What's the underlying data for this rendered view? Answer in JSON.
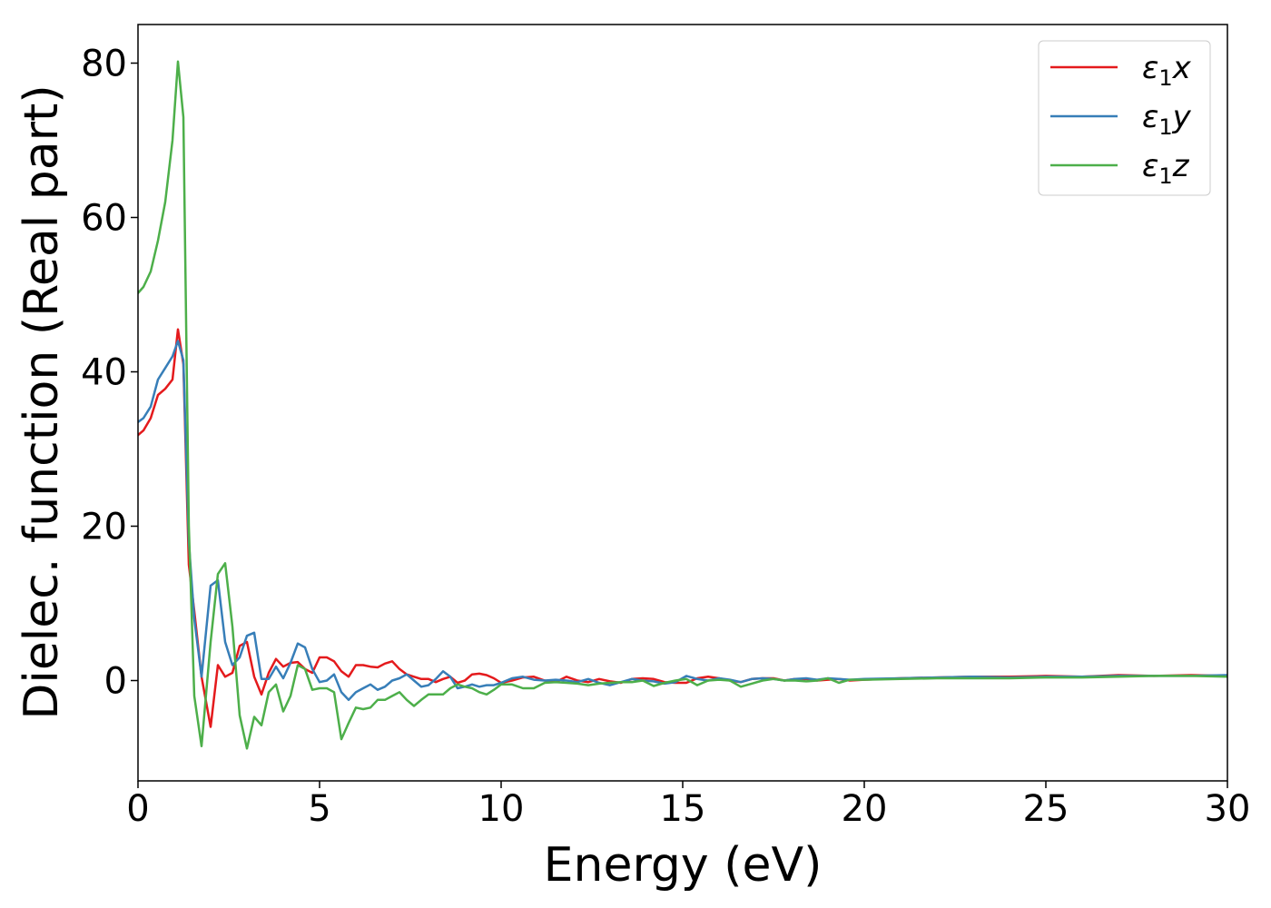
{
  "chart_data": {
    "type": "line",
    "title": "",
    "xlabel": "Energy (eV)",
    "ylabel": "Dielec. function (Real part)",
    "xlim": [
      0,
      30
    ],
    "ylim": [
      -13,
      85
    ],
    "xticks": [
      0,
      5,
      10,
      15,
      20,
      25,
      30
    ],
    "yticks": [
      0,
      20,
      40,
      60,
      80
    ],
    "grid": false,
    "legend_position": "top-right",
    "series": [
      {
        "name": "ε₁x",
        "legend_main": "ε",
        "legend_sub": "1",
        "legend_var": "x",
        "color": "#e41a1c",
        "x": [
          0,
          0.15,
          0.35,
          0.55,
          0.75,
          0.95,
          1.1,
          1.25,
          1.4,
          1.55,
          1.75,
          2.0,
          2.2,
          2.4,
          2.6,
          2.8,
          3.0,
          3.2,
          3.4,
          3.6,
          3.8,
          4.0,
          4.2,
          4.4,
          4.6,
          4.8,
          5.0,
          5.2,
          5.4,
          5.6,
          5.8,
          6.0,
          6.2,
          6.4,
          6.6,
          6.8,
          7.0,
          7.2,
          7.4,
          7.6,
          7.8,
          8.0,
          8.2,
          8.4,
          8.6,
          8.8,
          9.0,
          9.2,
          9.4,
          9.6,
          9.8,
          10.0,
          10.3,
          10.6,
          10.9,
          11.2,
          11.5,
          11.8,
          12.1,
          12.4,
          12.7,
          13.0,
          13.3,
          13.6,
          13.9,
          14.2,
          14.5,
          14.8,
          15.1,
          15.4,
          15.7,
          16.0,
          16.3,
          16.6,
          16.9,
          17.2,
          17.5,
          17.8,
          18.1,
          18.4,
          18.7,
          19.0,
          19.3,
          19.6,
          20.0,
          21.0,
          22.0,
          23.0,
          24.0,
          25.0,
          26.0,
          27.0,
          28.0,
          29.0,
          30.0
        ],
        "values": [
          31.8,
          32.4,
          34.0,
          37.0,
          37.8,
          39.0,
          45.5,
          41.0,
          15.0,
          9.0,
          0.5,
          -6.0,
          2.0,
          0.5,
          1.0,
          4.5,
          5.0,
          0.5,
          -1.8,
          1.0,
          2.8,
          1.8,
          2.3,
          2.4,
          1.5,
          1.0,
          3.0,
          3.0,
          2.5,
          1.2,
          0.5,
          2.0,
          2.0,
          1.8,
          1.7,
          2.2,
          2.5,
          1.5,
          0.8,
          0.5,
          0.2,
          0.2,
          -0.2,
          0.2,
          0.5,
          -0.3,
          0.0,
          0.8,
          0.9,
          0.7,
          0.3,
          -0.3,
          0.0,
          0.4,
          0.5,
          0.0,
          -0.2,
          0.5,
          0.0,
          -0.2,
          0.2,
          -0.1,
          -0.3,
          0.2,
          0.3,
          0.2,
          -0.2,
          -0.3,
          -0.3,
          0.3,
          0.5,
          0.3,
          0.0,
          -0.2,
          0.2,
          0.3,
          0.3,
          0.0,
          0.2,
          0.2,
          0.0,
          0.1,
          0.2,
          0.0,
          0.1,
          0.3,
          0.4,
          0.5,
          0.5,
          0.6,
          0.5,
          0.7,
          0.6,
          0.7,
          0.6
        ]
      },
      {
        "name": "ε₁y",
        "legend_main": "ε",
        "legend_sub": "1",
        "legend_var": "y",
        "color": "#377eb8",
        "x": [
          0,
          0.15,
          0.35,
          0.55,
          0.75,
          0.95,
          1.1,
          1.25,
          1.4,
          1.55,
          1.75,
          2.0,
          2.2,
          2.4,
          2.6,
          2.8,
          3.0,
          3.2,
          3.4,
          3.6,
          3.8,
          4.0,
          4.2,
          4.4,
          4.6,
          4.8,
          5.0,
          5.2,
          5.4,
          5.6,
          5.8,
          6.0,
          6.2,
          6.4,
          6.6,
          6.8,
          7.0,
          7.2,
          7.4,
          7.6,
          7.8,
          8.0,
          8.2,
          8.4,
          8.6,
          8.8,
          9.0,
          9.2,
          9.4,
          9.6,
          9.8,
          10.0,
          10.3,
          10.6,
          10.9,
          11.2,
          11.5,
          11.8,
          12.1,
          12.4,
          12.7,
          13.0,
          13.3,
          13.6,
          13.9,
          14.2,
          14.5,
          14.8,
          15.1,
          15.4,
          15.7,
          16.0,
          16.3,
          16.6,
          16.9,
          17.2,
          17.5,
          17.8,
          18.1,
          18.4,
          18.7,
          19.0,
          19.3,
          19.6,
          20.0,
          21.0,
          22.0,
          23.0,
          24.0,
          25.0,
          26.0,
          27.0,
          28.0,
          29.0,
          30.0
        ],
        "values": [
          33.5,
          34.0,
          35.5,
          39.0,
          40.5,
          42.0,
          44.0,
          41.5,
          18.0,
          8.0,
          0.5,
          12.3,
          13.0,
          5.0,
          2.0,
          3.0,
          5.8,
          6.2,
          0.2,
          0.2,
          1.8,
          0.3,
          2.3,
          4.8,
          4.3,
          1.5,
          -0.2,
          0.0,
          0.8,
          -1.5,
          -2.5,
          -1.5,
          -1.0,
          -0.5,
          -1.2,
          -0.8,
          0.0,
          0.3,
          0.8,
          0.0,
          -0.8,
          -0.6,
          0.2,
          1.2,
          0.5,
          -1.0,
          -0.8,
          -0.5,
          -0.8,
          -0.6,
          -0.6,
          -0.3,
          0.3,
          0.5,
          0.1,
          0.0,
          0.1,
          0.0,
          -0.2,
          0.2,
          -0.3,
          -0.6,
          -0.2,
          0.2,
          0.0,
          -0.1,
          -0.4,
          -0.2,
          0.6,
          0.2,
          0.0,
          0.3,
          0.1,
          -0.2,
          0.2,
          0.3,
          0.2,
          0.0,
          0.2,
          0.3,
          0.1,
          0.3,
          0.2,
          0.1,
          0.2,
          0.3,
          0.4,
          0.5,
          0.4,
          0.5,
          0.5,
          0.6,
          0.6,
          0.6,
          0.7
        ]
      },
      {
        "name": "ε₁z",
        "legend_main": "ε",
        "legend_sub": "1",
        "legend_var": "z",
        "color": "#4daf4a",
        "x": [
          0,
          0.15,
          0.35,
          0.55,
          0.75,
          0.95,
          1.1,
          1.25,
          1.4,
          1.55,
          1.75,
          2.0,
          2.2,
          2.4,
          2.6,
          2.8,
          3.0,
          3.2,
          3.4,
          3.6,
          3.8,
          4.0,
          4.2,
          4.4,
          4.6,
          4.8,
          5.0,
          5.2,
          5.4,
          5.6,
          5.8,
          6.0,
          6.2,
          6.4,
          6.6,
          6.8,
          7.0,
          7.2,
          7.4,
          7.6,
          7.8,
          8.0,
          8.2,
          8.4,
          8.6,
          8.8,
          9.0,
          9.2,
          9.4,
          9.6,
          9.8,
          10.0,
          10.3,
          10.6,
          10.9,
          11.2,
          11.5,
          11.8,
          12.1,
          12.4,
          12.7,
          13.0,
          13.3,
          13.6,
          13.9,
          14.2,
          14.5,
          14.8,
          15.1,
          15.4,
          15.7,
          16.0,
          16.3,
          16.6,
          16.9,
          17.2,
          17.5,
          17.8,
          18.1,
          18.4,
          18.7,
          19.0,
          19.3,
          19.6,
          20.0,
          21.0,
          22.0,
          23.0,
          24.0,
          25.0,
          26.0,
          27.0,
          28.0,
          29.0,
          30.0
        ],
        "values": [
          50.2,
          51.0,
          53.0,
          57.0,
          62.0,
          70.0,
          80.2,
          73.0,
          20.0,
          -2.0,
          -8.5,
          5.0,
          13.8,
          15.2,
          7.0,
          -4.5,
          -8.8,
          -4.7,
          -5.8,
          -1.5,
          -0.5,
          -4.0,
          -2.0,
          2.0,
          1.5,
          -1.2,
          -1.0,
          -1.0,
          -1.5,
          -7.6,
          -5.5,
          -3.5,
          -3.7,
          -3.5,
          -2.5,
          -2.5,
          -2.0,
          -1.5,
          -2.5,
          -3.3,
          -2.5,
          -1.8,
          -1.8,
          -1.8,
          -1.0,
          -0.5,
          -0.8,
          -1.0,
          -1.5,
          -1.8,
          -1.2,
          -0.5,
          -0.5,
          -1.0,
          -1.0,
          -0.3,
          -0.2,
          -0.3,
          -0.4,
          -0.6,
          -0.4,
          -0.3,
          -0.2,
          -0.2,
          0.0,
          -0.7,
          -0.3,
          0.0,
          0.2,
          -0.6,
          0.0,
          0.1,
          0.0,
          -0.8,
          -0.4,
          0.0,
          0.2,
          0.0,
          0.0,
          -0.1,
          0.0,
          0.3,
          -0.3,
          0.1,
          0.1,
          0.2,
          0.3,
          0.3,
          0.3,
          0.4,
          0.4,
          0.5,
          0.6,
          0.6,
          0.5
        ]
      }
    ]
  }
}
